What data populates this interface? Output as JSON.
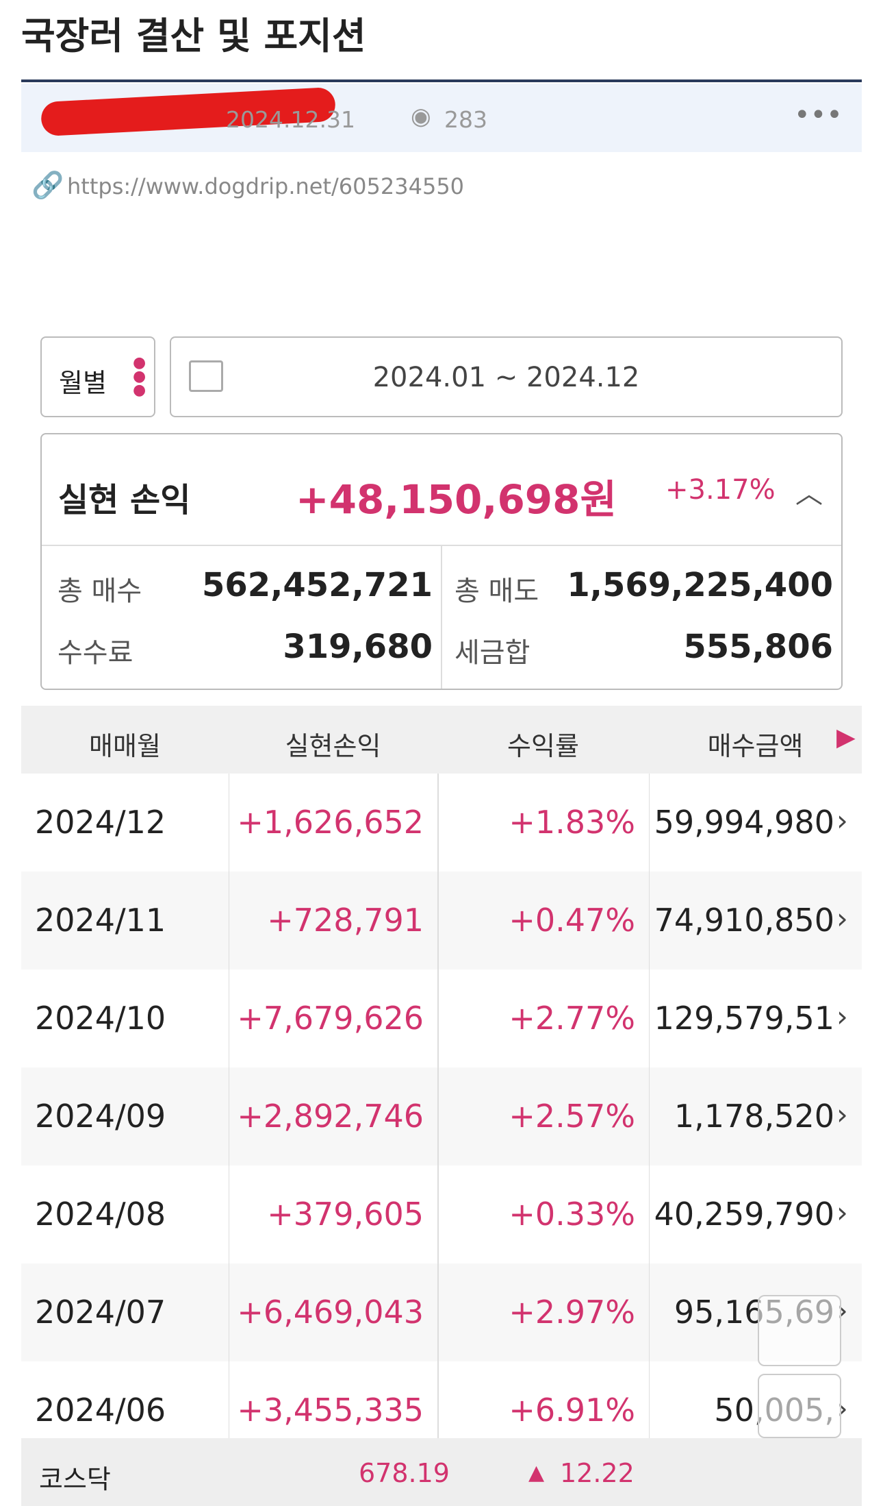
{
  "post": {
    "title": "국장러 결산 및 포지션",
    "date": "2024.12.31",
    "views": "283",
    "url": "https://www.dogdrip.net/605234550"
  },
  "filter": {
    "period": "월별",
    "range": "2024.01 ~ 2024.12"
  },
  "summary": {
    "label": "실현 손익",
    "amount": "+48,150,698원",
    "rate": "+3.17%",
    "stats": [
      [
        "총 매수",
        "562,452,721"
      ],
      [
        "총 매도",
        "1,569,225,400"
      ],
      [
        "수수료",
        "319,680"
      ],
      [
        "세금합",
        "555,806"
      ]
    ]
  },
  "table": {
    "headers": [
      "매매월",
      "실현손익",
      "수익률",
      "매수금액"
    ],
    "rows": [
      [
        "2024/12",
        "+1,626,652",
        "+1.83%",
        "59,994,980"
      ],
      [
        "2024/11",
        "+728,791",
        "+0.47%",
        "74,910,850"
      ],
      [
        "2024/10",
        "+7,679,626",
        "+2.77%",
        "129,579,51"
      ],
      [
        "2024/09",
        "+2,892,746",
        "+2.57%",
        "1,178,520"
      ],
      [
        "2024/08",
        "+379,605",
        "+0.33%",
        "40,259,790"
      ],
      [
        "2024/07",
        "+6,469,043",
        "+2.97%",
        "95,165,69"
      ],
      [
        "2024/06",
        "+3,455,335",
        "+6.91%",
        "50,005,"
      ]
    ]
  },
  "ticker": {
    "name": "코스닥",
    "price": "678.19",
    "change": "12.22"
  }
}
